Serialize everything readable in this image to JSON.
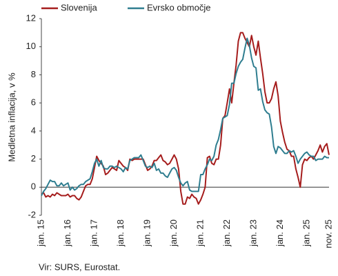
{
  "chart_data": {
    "type": "line",
    "ylabel": "Medletna inflacija, v %",
    "source": "Vir: SURS, Eurostat.",
    "categories": [
      "jan. 15",
      null,
      null,
      null,
      null,
      null,
      null,
      null,
      null,
      null,
      null,
      null,
      "jan. 16",
      null,
      null,
      null,
      null,
      null,
      null,
      null,
      null,
      null,
      null,
      null,
      "jan. 17",
      null,
      null,
      null,
      null,
      null,
      null,
      null,
      null,
      null,
      null,
      null,
      "jan. 18",
      null,
      null,
      null,
      null,
      null,
      null,
      null,
      null,
      null,
      null,
      null,
      "jan. 19",
      null,
      null,
      null,
      null,
      null,
      null,
      null,
      null,
      null,
      null,
      null,
      "jan. 20",
      null,
      null,
      null,
      null,
      null,
      null,
      null,
      null,
      null,
      null,
      null,
      "jan. 21",
      null,
      null,
      null,
      null,
      null,
      null,
      null,
      null,
      null,
      null,
      null,
      "jan. 22",
      null,
      null,
      null,
      null,
      null,
      null,
      null,
      null,
      null,
      null,
      null,
      "jan. 23",
      null,
      null,
      null,
      null,
      null,
      null,
      null,
      null,
      null,
      null,
      null,
      "jan. 24",
      null,
      null,
      null,
      null,
      null,
      null,
      null,
      null,
      null,
      null,
      null,
      "jan. 25",
      null,
      null,
      null,
      null,
      null,
      null,
      null,
      null,
      null,
      "nov. 25"
    ],
    "series": [
      {
        "name": "Slovenija",
        "color": "#a51c1c",
        "values": [
          -0.5,
          -0.4,
          -0.7,
          -0.6,
          -0.7,
          -0.5,
          -0.6,
          -0.4,
          -0.5,
          -0.6,
          -0.6,
          -0.6,
          -0.5,
          -0.7,
          -0.6,
          -0.6,
          -0.8,
          -0.9,
          -0.7,
          -0.3,
          0.1,
          0.2,
          0.2,
          0.6,
          1.4,
          2.2,
          1.9,
          1.7,
          1.5,
          0.9,
          1.0,
          1.2,
          1.4,
          1.3,
          1.2,
          1.9,
          1.7,
          1.5,
          1.4,
          1.2,
          2.0,
          1.9,
          2.0,
          2.0,
          2.0,
          2.0,
          2.0,
          1.6,
          1.2,
          1.3,
          1.5,
          1.9,
          1.9,
          2.1,
          2.3,
          1.9,
          1.8,
          1.6,
          1.7,
          2.0,
          2.3,
          2.0,
          1.3,
          -0.3,
          -1.2,
          -1.2,
          -0.7,
          -0.8,
          -0.5,
          -0.7,
          -0.8,
          -1.2,
          -0.9,
          -0.5,
          0.0,
          2.1,
          2.2,
          1.7,
          1.6,
          2.0,
          2.0,
          3.0,
          4.9,
          5.1,
          6.0,
          7.0,
          6.0,
          7.4,
          8.7,
          10.4,
          11.0,
          11.0,
          10.6,
          10.3,
          10.0,
          10.8,
          10.0,
          9.4,
          10.4,
          9.2,
          8.1,
          6.8,
          6.0,
          6.0,
          6.3,
          7.0,
          7.5,
          6.5,
          4.7,
          3.9,
          3.2,
          2.7,
          2.6,
          2.2,
          2.2,
          1.3,
          0.7,
          0.0,
          1.6,
          2.0,
          1.9,
          2.1,
          2.2,
          2.0,
          2.3,
          2.6,
          3.0,
          2.5,
          2.9,
          3.1,
          2.3
        ]
      },
      {
        "name": "Evrsko območje",
        "color": "#2e7d8f",
        "values": [
          -0.6,
          -0.3,
          -0.1,
          0.2,
          0.5,
          0.4,
          0.4,
          0.1,
          0.1,
          0.3,
          0.1,
          0.2,
          0.3,
          -0.2,
          0.0,
          -0.2,
          -0.1,
          0.1,
          0.2,
          0.2,
          0.4,
          0.5,
          0.6,
          1.1,
          1.7,
          2.0,
          1.5,
          1.9,
          1.4,
          1.3,
          1.3,
          1.5,
          1.5,
          1.4,
          1.5,
          1.4,
          1.3,
          1.1,
          1.4,
          1.3,
          1.9,
          2.0,
          2.1,
          2.1,
          2.1,
          2.3,
          1.9,
          1.5,
          1.4,
          1.5,
          1.4,
          1.7,
          1.2,
          1.3,
          1.0,
          1.0,
          0.8,
          0.7,
          1.0,
          1.3,
          1.4,
          1.2,
          0.7,
          0.3,
          0.1,
          0.3,
          0.4,
          -0.2,
          -0.3,
          -0.3,
          -0.3,
          -0.3,
          0.9,
          0.9,
          1.3,
          1.6,
          2.0,
          1.9,
          2.2,
          3.0,
          3.4,
          4.1,
          4.9,
          5.0,
          5.1,
          5.9,
          7.4,
          7.4,
          8.1,
          8.6,
          8.9,
          9.1,
          9.9,
          10.6,
          10.1,
          9.2,
          8.6,
          8.5,
          6.9,
          7.0,
          6.1,
          5.5,
          5.3,
          5.2,
          4.3,
          2.9,
          2.4,
          2.9,
          2.8,
          2.6,
          2.4,
          2.4,
          2.6,
          2.5,
          2.6,
          2.2,
          1.7,
          2.0,
          2.2,
          2.4,
          2.5,
          2.3,
          2.2,
          2.2,
          1.9,
          2.0,
          2.0,
          2.0,
          2.2,
          2.1,
          2.1
        ]
      }
    ],
    "ylim": [
      -2,
      12
    ],
    "yticks": [
      12,
      10,
      8,
      6,
      4,
      2,
      0,
      -2
    ],
    "legend": "top"
  }
}
